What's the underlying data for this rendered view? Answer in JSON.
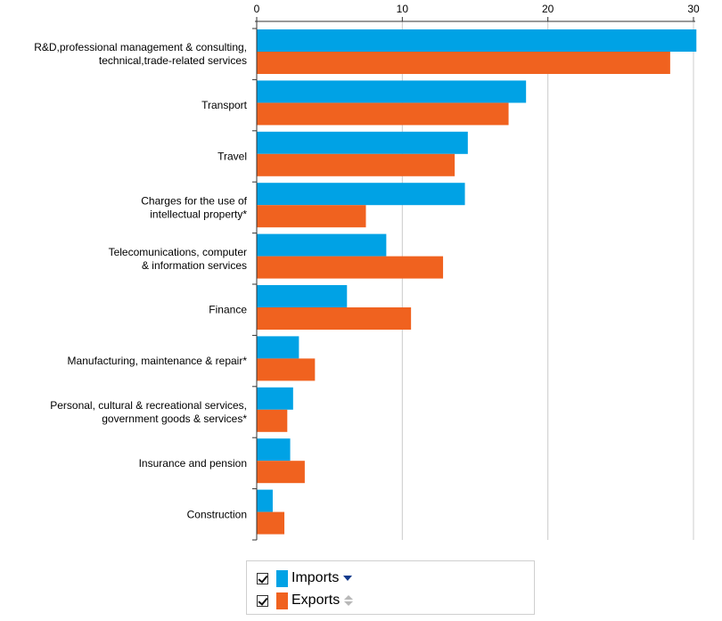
{
  "chart_data": {
    "type": "bar",
    "orientation": "horizontal",
    "categories": [
      [
        "R&D,professional management & consulting,",
        "technical,trade-related services"
      ],
      [
        "Transport"
      ],
      [
        "Travel"
      ],
      [
        "Charges for the use of",
        "intellectual property*"
      ],
      [
        "Telecomunications, computer",
        "& information services"
      ],
      [
        "Finance"
      ],
      [
        "Manufacturing, maintenance & repair*"
      ],
      [
        "Personal, cultural & recreational services,",
        "government goods & services*"
      ],
      [
        "Insurance and pension"
      ],
      [
        "Construction"
      ]
    ],
    "series": [
      {
        "name": "Imports",
        "color": "#00a2e5",
        "values": [
          30.2,
          18.5,
          14.5,
          14.3,
          8.9,
          6.2,
          2.9,
          2.5,
          2.3,
          1.1
        ]
      },
      {
        "name": "Exports",
        "color": "#f0621f",
        "values": [
          28.4,
          17.3,
          13.6,
          7.5,
          12.8,
          10.6,
          4.0,
          2.1,
          3.3,
          1.9
        ]
      }
    ],
    "xlim": [
      0,
      30
    ],
    "xticks": [
      0,
      10,
      20,
      30
    ],
    "axis_position": "top",
    "grid": true,
    "legend_position": "bottom"
  },
  "legend": {
    "items": [
      {
        "label": "Imports",
        "checked": true,
        "sort": "descending",
        "color": "#00a2e5"
      },
      {
        "label": "Exports",
        "checked": true,
        "sort": "none",
        "color": "#f0621f"
      }
    ]
  }
}
